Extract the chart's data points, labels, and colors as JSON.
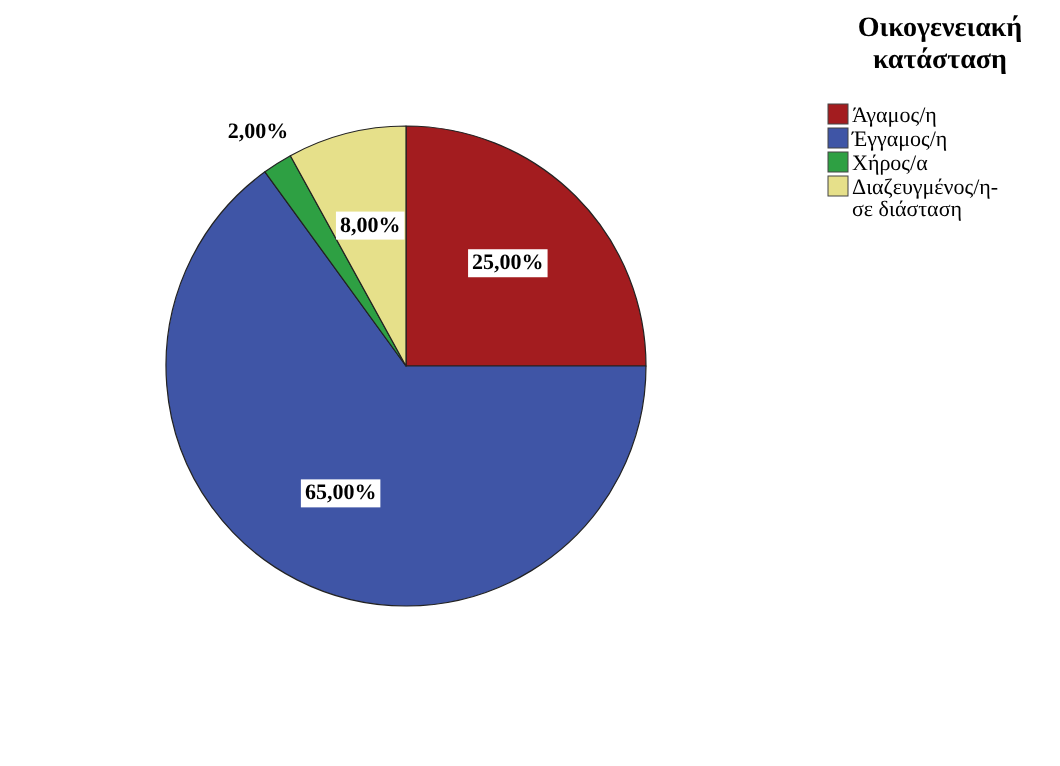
{
  "chart_data": {
    "type": "pie",
    "legend_title": "Οικογενειακή κατάσταση",
    "categories": [
      "Άγαμος/η",
      "Έγγαμος/η",
      "Χήρος/α",
      "Διαζευγμένος/η- σε διάσταση"
    ],
    "values": [
      25,
      65,
      2,
      8
    ],
    "colors": [
      "#a31c1f",
      "#3f55a6",
      "#2ea043",
      "#e6e08a"
    ],
    "value_labels": [
      "25,00%",
      "65,00%",
      "2,00%",
      "8,00%"
    ],
    "legend": "top right"
  }
}
